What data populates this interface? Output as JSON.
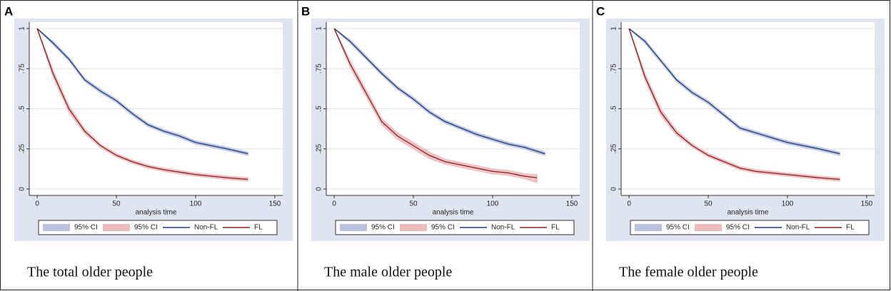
{
  "chart_data": [
    {
      "type": "line",
      "label": "A",
      "caption": "The total older people",
      "xlabel": "analysis time",
      "xlim": [
        -5,
        155
      ],
      "xticks": [
        0,
        50,
        100,
        150
      ],
      "ylim": [
        -0.04,
        1.04
      ],
      "yticks": [
        0,
        {
          "value": 0.25,
          "label": ".25"
        },
        {
          "value": 0.5,
          "label": ".5"
        },
        {
          "value": 0.75,
          "label": ".75"
        },
        1
      ],
      "grid": true,
      "series": [
        {
          "name": "95% CI",
          "kind": "band",
          "color": "#b9c3df",
          "x": [
            0,
            10,
            20,
            30,
            40,
            50,
            60,
            70,
            80,
            90,
            100,
            110,
            120,
            133
          ],
          "lower": [
            1,
            0.9,
            0.8,
            0.67,
            0.6,
            0.54,
            0.46,
            0.39,
            0.35,
            0.32,
            0.28,
            0.26,
            0.24,
            0.21
          ],
          "upper": [
            1,
            0.92,
            0.82,
            0.69,
            0.62,
            0.56,
            0.48,
            0.41,
            0.37,
            0.34,
            0.3,
            0.28,
            0.26,
            0.23
          ]
        },
        {
          "name": "95% CI",
          "kind": "band",
          "color": "#ebbcbc",
          "x": [
            0,
            10,
            20,
            30,
            40,
            50,
            60,
            70,
            80,
            90,
            100,
            110,
            120,
            133
          ],
          "lower": [
            1,
            0.7,
            0.48,
            0.345,
            0.26,
            0.2,
            0.16,
            0.13,
            0.11,
            0.095,
            0.08,
            0.07,
            0.06,
            0.05
          ],
          "upper": [
            1,
            0.74,
            0.52,
            0.375,
            0.28,
            0.22,
            0.18,
            0.15,
            0.13,
            0.115,
            0.1,
            0.09,
            0.08,
            0.07
          ]
        },
        {
          "name": "Non-FL",
          "kind": "line",
          "color": "#1f3a7a",
          "x": [
            0,
            10,
            20,
            30,
            40,
            50,
            60,
            70,
            80,
            90,
            100,
            110,
            120,
            133
          ],
          "values": [
            1,
            0.91,
            0.81,
            0.68,
            0.61,
            0.55,
            0.47,
            0.4,
            0.36,
            0.33,
            0.29,
            0.27,
            0.25,
            0.22
          ]
        },
        {
          "name": "FL",
          "kind": "line",
          "color": "#8e1f1f",
          "x": [
            0,
            10,
            20,
            30,
            40,
            50,
            60,
            70,
            80,
            90,
            100,
            110,
            120,
            133
          ],
          "values": [
            1,
            0.72,
            0.5,
            0.36,
            0.27,
            0.21,
            0.17,
            0.14,
            0.12,
            0.105,
            0.09,
            0.08,
            0.07,
            0.06
          ]
        }
      ]
    },
    {
      "type": "line",
      "label": "B",
      "caption": "The male older people",
      "xlabel": "analysis time",
      "xlim": [
        -5,
        155
      ],
      "xticks": [
        0,
        50,
        100,
        150
      ],
      "ylim": [
        -0.04,
        1.04
      ],
      "yticks": [
        0,
        {
          "value": 0.25,
          "label": ".25"
        },
        {
          "value": 0.5,
          "label": ".5"
        },
        {
          "value": 0.75,
          "label": ".75"
        },
        1
      ],
      "grid": true,
      "series": [
        {
          "name": "95% CI",
          "kind": "band",
          "color": "#b9c3df",
          "x": [
            0,
            10,
            20,
            30,
            40,
            50,
            60,
            70,
            80,
            90,
            100,
            110,
            120,
            133
          ],
          "lower": [
            1,
            0.91,
            0.81,
            0.71,
            0.62,
            0.55,
            0.47,
            0.41,
            0.37,
            0.33,
            0.3,
            0.27,
            0.25,
            0.21
          ],
          "upper": [
            1,
            0.93,
            0.83,
            0.73,
            0.64,
            0.57,
            0.49,
            0.43,
            0.39,
            0.35,
            0.32,
            0.29,
            0.27,
            0.23
          ]
        },
        {
          "name": "95% CI",
          "kind": "band",
          "color": "#ebbcbc",
          "x": [
            0,
            10,
            20,
            30,
            40,
            50,
            60,
            70,
            80,
            90,
            100,
            110,
            120,
            128
          ],
          "lower": [
            1,
            0.76,
            0.58,
            0.4,
            0.31,
            0.25,
            0.19,
            0.155,
            0.135,
            0.115,
            0.095,
            0.085,
            0.065,
            0.04
          ],
          "upper": [
            1,
            0.8,
            0.62,
            0.44,
            0.35,
            0.29,
            0.23,
            0.185,
            0.165,
            0.145,
            0.125,
            0.115,
            0.095,
            0.09
          ]
        },
        {
          "name": "Non-FL",
          "kind": "line",
          "color": "#1f3a7a",
          "x": [
            0,
            10,
            20,
            30,
            40,
            50,
            60,
            70,
            80,
            90,
            100,
            110,
            120,
            133
          ],
          "values": [
            1,
            0.92,
            0.82,
            0.72,
            0.63,
            0.56,
            0.48,
            0.42,
            0.38,
            0.34,
            0.31,
            0.28,
            0.26,
            0.22
          ]
        },
        {
          "name": "FL",
          "kind": "line",
          "color": "#8e1f1f",
          "x": [
            0,
            10,
            20,
            30,
            40,
            50,
            60,
            70,
            80,
            90,
            100,
            110,
            120,
            128
          ],
          "values": [
            1,
            0.78,
            0.6,
            0.42,
            0.33,
            0.27,
            0.21,
            0.17,
            0.15,
            0.13,
            0.11,
            0.1,
            0.08,
            0.07
          ]
        }
      ]
    },
    {
      "type": "line",
      "label": "C",
      "caption": "The female older people",
      "xlabel": "analysis time",
      "xlim": [
        -5,
        155
      ],
      "xticks": [
        0,
        50,
        100,
        150
      ],
      "ylim": [
        -0.04,
        1.04
      ],
      "yticks": [
        0,
        {
          "value": 0.25,
          "label": ".25"
        },
        {
          "value": 0.5,
          "label": ".5"
        },
        {
          "value": 0.75,
          "label": ".75"
        },
        1
      ],
      "grid": true,
      "series": [
        {
          "name": "95% CI",
          "kind": "band",
          "color": "#b9c3df",
          "x": [
            0,
            10,
            20,
            30,
            40,
            50,
            60,
            70,
            80,
            90,
            100,
            110,
            120,
            133
          ],
          "lower": [
            1,
            0.91,
            0.79,
            0.67,
            0.59,
            0.53,
            0.45,
            0.37,
            0.34,
            0.31,
            0.28,
            0.26,
            0.24,
            0.21
          ],
          "upper": [
            1,
            0.93,
            0.81,
            0.69,
            0.61,
            0.55,
            0.47,
            0.39,
            0.36,
            0.33,
            0.3,
            0.28,
            0.26,
            0.23
          ]
        },
        {
          "name": "95% CI",
          "kind": "band",
          "color": "#ebbcbc",
          "x": [
            0,
            10,
            20,
            30,
            40,
            50,
            60,
            70,
            80,
            90,
            100,
            110,
            120,
            133
          ],
          "lower": [
            1,
            0.68,
            0.46,
            0.335,
            0.26,
            0.2,
            0.16,
            0.12,
            0.1,
            0.09,
            0.08,
            0.07,
            0.06,
            0.05
          ],
          "upper": [
            1,
            0.72,
            0.5,
            0.365,
            0.28,
            0.22,
            0.18,
            0.14,
            0.12,
            0.11,
            0.1,
            0.09,
            0.08,
            0.07
          ]
        },
        {
          "name": "Non-FL",
          "kind": "line",
          "color": "#1f3a7a",
          "x": [
            0,
            10,
            20,
            30,
            40,
            50,
            60,
            70,
            80,
            90,
            100,
            110,
            120,
            133
          ],
          "values": [
            1,
            0.92,
            0.8,
            0.68,
            0.6,
            0.54,
            0.46,
            0.38,
            0.35,
            0.32,
            0.29,
            0.27,
            0.25,
            0.22
          ]
        },
        {
          "name": "FL",
          "kind": "line",
          "color": "#8e1f1f",
          "x": [
            0,
            10,
            20,
            30,
            40,
            50,
            60,
            70,
            80,
            90,
            100,
            110,
            120,
            133
          ],
          "values": [
            1,
            0.7,
            0.48,
            0.35,
            0.27,
            0.21,
            0.17,
            0.13,
            0.11,
            0.1,
            0.09,
            0.08,
            0.07,
            0.06
          ]
        }
      ]
    }
  ]
}
